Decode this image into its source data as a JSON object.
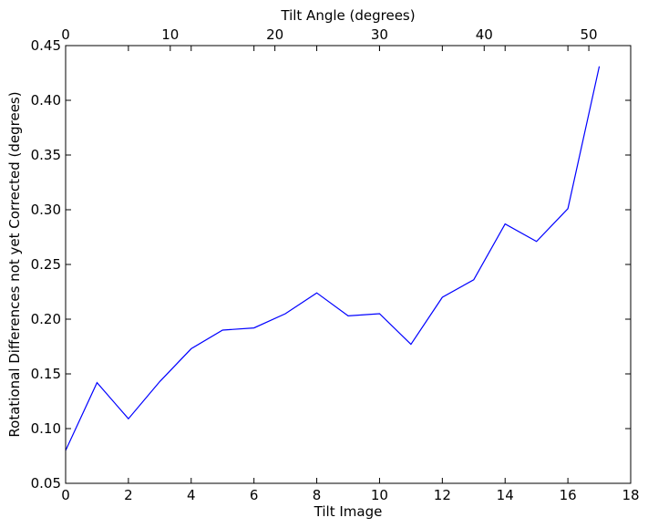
{
  "chart_data": {
    "type": "line",
    "title": "",
    "xlabel": "Tilt Image",
    "ylabel": "Rotational Differences not yet Corrected (degrees)",
    "x2label": "Tilt Angle (degrees)",
    "xlim": [
      0,
      18
    ],
    "ylim": [
      0.05,
      0.45
    ],
    "x2lim": [
      0,
      54
    ],
    "xticks": [
      0,
      2,
      4,
      6,
      8,
      10,
      12,
      14,
      16,
      18
    ],
    "yticks": [
      0.05,
      0.1,
      0.15,
      0.2,
      0.25,
      0.3,
      0.35,
      0.4,
      0.45
    ],
    "x2ticks": [
      0,
      10,
      20,
      30,
      40,
      50
    ],
    "xtick_labels": [
      "0",
      "2",
      "4",
      "6",
      "8",
      "10",
      "12",
      "14",
      "16",
      "18"
    ],
    "ytick_labels": [
      "0.05",
      "0.10",
      "0.15",
      "0.20",
      "0.25",
      "0.30",
      "0.35",
      "0.40",
      "0.45"
    ],
    "x2tick_labels": [
      "0",
      "10",
      "20",
      "30",
      "40",
      "50"
    ],
    "grid": false,
    "series": [
      {
        "color": "#0000ff",
        "x": [
          0,
          1,
          2,
          3,
          4,
          5,
          6,
          7,
          8,
          9,
          10,
          11,
          12,
          13,
          14,
          15,
          16,
          17
        ],
        "y": [
          0.08,
          0.142,
          0.109,
          0.143,
          0.173,
          0.19,
          0.192,
          0.205,
          0.224,
          0.203,
          0.205,
          0.177,
          0.22,
          0.236,
          0.287,
          0.271,
          0.301,
          0.431
        ]
      }
    ]
  }
}
